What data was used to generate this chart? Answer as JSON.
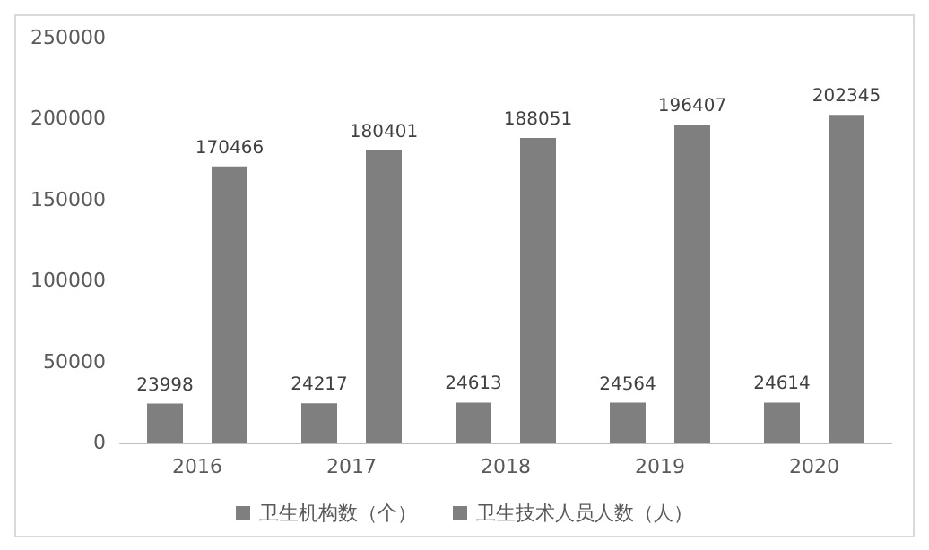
{
  "chart_data": {
    "type": "bar",
    "categories": [
      "2016",
      "2017",
      "2018",
      "2019",
      "2020"
    ],
    "series": [
      {
        "name": "卫生机构数（个）",
        "color": "#7f7f7f",
        "values": [
          23998,
          24217,
          24613,
          24564,
          24614
        ]
      },
      {
        "name": "卫生技术人员人数（人）",
        "color": "#7f7f7f",
        "values": [
          170466,
          180401,
          188051,
          196407,
          202345
        ]
      }
    ],
    "ylim": [
      0,
      250000
    ],
    "yticks": [
      0,
      50000,
      100000,
      150000,
      200000,
      250000
    ],
    "grid": false,
    "legend": "bottom",
    "data_labels": true
  }
}
